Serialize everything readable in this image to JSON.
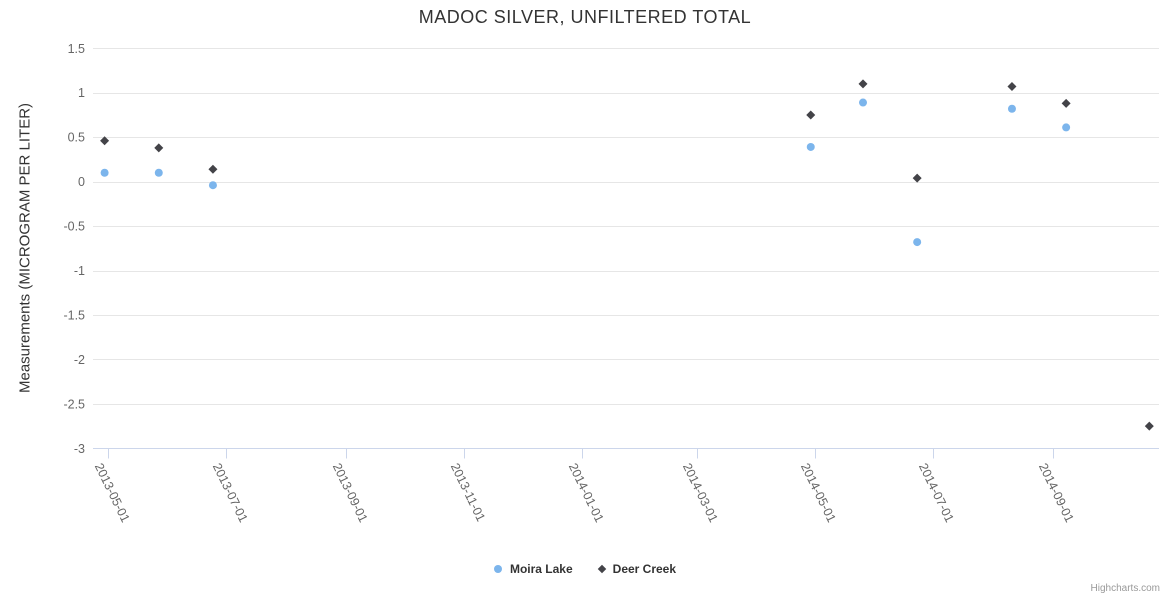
{
  "credits": "Highcharts.com",
  "chart_data": {
    "type": "scatter",
    "title": "MADOC SILVER, UNFILTERED TOTAL",
    "ylabel": "Measurements (MICROGRAM PER LITER)",
    "xlabel": "",
    "ylim": [
      -3,
      1.5
    ],
    "y_ticks": [
      1.5,
      1,
      0.5,
      0,
      -0.5,
      -1,
      -1.5,
      -2,
      -2.5,
      -3
    ],
    "xlim": [
      "2013-04-23",
      "2014-10-26"
    ],
    "x_ticks": [
      "2013-05-01",
      "2013-07-01",
      "2013-09-01",
      "2013-11-01",
      "2014-01-01",
      "2014-03-01",
      "2014-05-01",
      "2014-07-01",
      "2014-09-01"
    ],
    "grid": true,
    "legend_position": "bottom",
    "grid_color": "#e6e6e6",
    "axis_line_color": "#ccd6eb",
    "series": [
      {
        "name": "Moira Lake",
        "marker": "circle",
        "color": "#7cb5ec",
        "points": [
          {
            "date": "2013-04-29",
            "value": 0.1
          },
          {
            "date": "2013-05-27",
            "value": 0.1
          },
          {
            "date": "2013-06-24",
            "value": -0.04
          },
          {
            "date": "2014-04-29",
            "value": 0.39
          },
          {
            "date": "2014-05-26",
            "value": 0.89
          },
          {
            "date": "2014-06-23",
            "value": -0.68
          },
          {
            "date": "2014-08-11",
            "value": 0.82
          },
          {
            "date": "2014-09-08",
            "value": 0.61
          }
        ]
      },
      {
        "name": "Deer Creek",
        "marker": "diamond",
        "color": "#434348",
        "points": [
          {
            "date": "2013-04-29",
            "value": 0.46
          },
          {
            "date": "2013-05-27",
            "value": 0.38
          },
          {
            "date": "2013-06-24",
            "value": 0.14
          },
          {
            "date": "2014-04-29",
            "value": 0.75
          },
          {
            "date": "2014-05-26",
            "value": 1.1
          },
          {
            "date": "2014-06-23",
            "value": 0.04
          },
          {
            "date": "2014-08-11",
            "value": 1.07
          },
          {
            "date": "2014-09-08",
            "value": 0.88
          },
          {
            "date": "2014-10-21",
            "value": -2.75
          }
        ]
      }
    ]
  }
}
